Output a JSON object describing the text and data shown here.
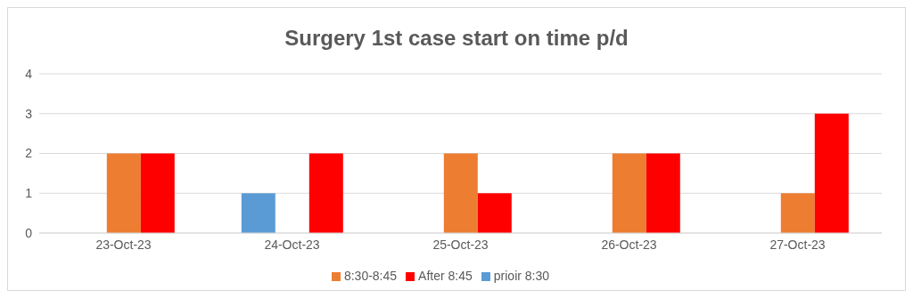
{
  "chart_data": {
    "type": "bar",
    "title": "Surgery 1st case start on time p/d",
    "categories": [
      "23-Oct-23",
      "24-Oct-23",
      "25-Oct-23",
      "26-Oct-23",
      "27-Oct-23"
    ],
    "series": [
      {
        "name": "prioir 8:30",
        "color": "#5b9bd5",
        "values": [
          0,
          1,
          0,
          0,
          0
        ]
      },
      {
        "name": "8:30-8:45",
        "color": "#ed7d31",
        "values": [
          2,
          0,
          2,
          2,
          1
        ]
      },
      {
        "name": "After 8:45",
        "color": "#ff0000",
        "values": [
          2,
          2,
          1,
          2,
          3
        ]
      }
    ],
    "ylim": [
      0,
      4
    ],
    "yticks": [
      0,
      1,
      2,
      3,
      4
    ],
    "grid": "y",
    "legend": "bottom"
  }
}
